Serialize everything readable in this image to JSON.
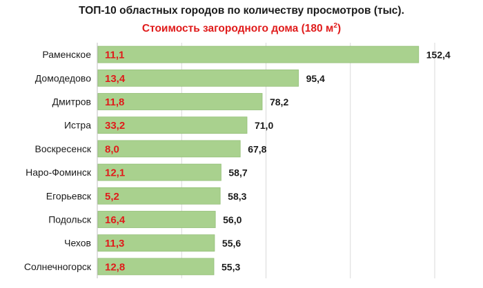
{
  "chart_data": {
    "type": "bar",
    "orientation": "horizontal",
    "title": "ТОП-10 областных городов по количеству просмотров (тыс).",
    "subtitle": {
      "text": "Стоимость загородного дома (180 м",
      "superscript": "2",
      "suffix": ")"
    },
    "categories": [
      "Раменское",
      "Домодедово",
      "Дмитров",
      "Истра",
      "Воскресенск",
      "Наро-Фоминск",
      "Егорьевск",
      "Подольск",
      "Чехов",
      "Солнечногорск"
    ],
    "values": [
      152.4,
      95.4,
      78.2,
      71.0,
      67.8,
      58.7,
      58.3,
      56.0,
      55.6,
      55.3
    ],
    "value_labels": [
      "152,4",
      "95,4",
      "78,2",
      "71,0",
      "67,8",
      "58,7",
      "58,3",
      "56,0",
      "55,6",
      "55,3"
    ],
    "inner_labels": [
      "11,1",
      "13,4",
      "11,8",
      "33,2",
      "8,0",
      "12,1",
      "5,2",
      "16,4",
      "11,3",
      "12,8"
    ],
    "xlim": [
      0,
      160
    ],
    "grid": "vertical",
    "colors": {
      "bar_fill": "#a9d18e",
      "bar_stroke": "#94bf78",
      "inner_label": "#e01b1b",
      "value_label": "#1a1a1a",
      "category_label": "#1a1a1a",
      "grid": "#d9d9d9",
      "axis": "#bfbfbf"
    }
  }
}
